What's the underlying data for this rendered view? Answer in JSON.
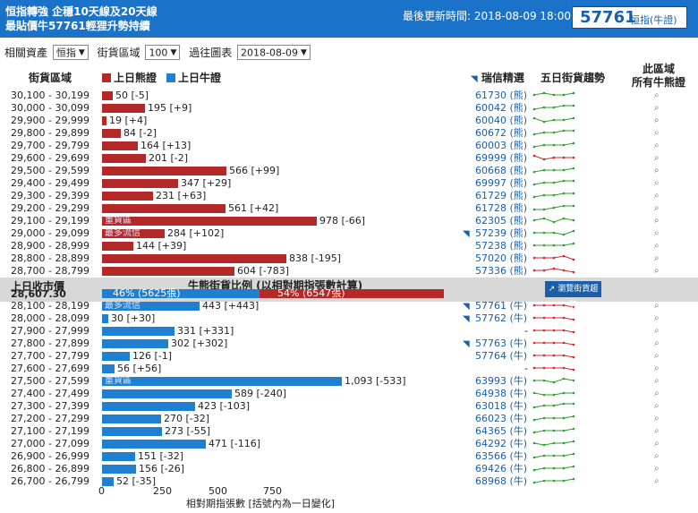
{
  "header": {
    "title_line1": "恒指轉強 企穩10天線及20天線",
    "title_line2": "最貼價牛57761輕狸升勢持續",
    "update": "最後更新時間: 2018-08-09 18:00",
    "code": "57761",
    "code_label": "恒指(牛證)"
  },
  "filters": {
    "asset_label": "相關資產",
    "asset_value": "恒指",
    "zone_label": "街貨區域",
    "zone_value": "100",
    "past_label": "過往圖表",
    "past_value": "2018-08-09"
  },
  "columns": {
    "zone": "街貨區域",
    "bear_legend": "上日熊證",
    "bull_legend": "上日牛證",
    "pick": "瑞信精選",
    "trend": "五日街貨趨勢",
    "all_line1": "此區域",
    "all_line2": "所有牛熊證"
  },
  "colors": {
    "bear": "#b52828",
    "bull": "#1f7fd1",
    "header": "#1a73c9",
    "up": "#2ca02c",
    "down": "#d62728"
  },
  "close": {
    "label": "上日收市價",
    "value": "28,607.30"
  },
  "ratio": {
    "title": "牛熊街貨比例 (以相對期指張數計算)",
    "bull_pct": 46,
    "bull_text": "46% (5625張)",
    "bear_pct": 54,
    "bear_text": "54% (6547張)",
    "button": "瀏覽街貨趨勢"
  },
  "chart_data": {
    "type": "bar",
    "xlabel": "相對期指張數 [括號內為一日變化]",
    "xticks": [
      0,
      250,
      500,
      750
    ],
    "bear": [
      {
        "range": "30,100 - 30,199",
        "value": 50,
        "label": "50 [-5]",
        "code": "61730 (熊)",
        "trend": [
          3,
          4,
          3,
          3,
          4
        ]
      },
      {
        "range": "30,000 - 30,099",
        "value": 195,
        "label": "195 [+9]",
        "code": "60042 (熊)",
        "trend": [
          2,
          3,
          3,
          4,
          4
        ]
      },
      {
        "range": "29,900 - 29,999",
        "value": 19,
        "label": "19 [+4]",
        "code": "60040 (熊)",
        "trend": [
          4,
          2,
          3,
          3,
          4
        ]
      },
      {
        "range": "29,800 - 29,899",
        "value": 84,
        "label": "84 [-2]",
        "code": "60672 (熊)",
        "trend": [
          2,
          3,
          3,
          4,
          4
        ]
      },
      {
        "range": "29,700 - 29,799",
        "value": 164,
        "label": "164 [+13]",
        "code": "60003 (熊)",
        "trend": [
          2,
          3,
          3,
          3,
          4
        ]
      },
      {
        "range": "29,600 - 29,699",
        "value": 201,
        "label": "201 [-2]",
        "code": "69999 (熊)",
        "trend": [
          4,
          2,
          3,
          3,
          3
        ]
      },
      {
        "range": "29,500 - 29,599",
        "value": 566,
        "label": "566 [+99]",
        "code": "60668 (熊)",
        "trend": [
          2,
          3,
          3,
          3,
          4
        ]
      },
      {
        "range": "29,400 - 29,499",
        "value": 347,
        "label": "347 [+29]",
        "code": "69997 (熊)",
        "trend": [
          2,
          3,
          3,
          4,
          4
        ]
      },
      {
        "range": "29,300 - 29,399",
        "value": 231,
        "label": "231 [+63]",
        "code": "61729 (熊)",
        "trend": [
          2,
          3,
          3,
          4,
          4
        ]
      },
      {
        "range": "29,200 - 29,299",
        "value": 561,
        "label": "561 [+42]",
        "code": "61728 (熊)",
        "trend": [
          2,
          2,
          3,
          4,
          4
        ]
      },
      {
        "range": "29,100 - 29,199",
        "value": 978,
        "label": "978 [-66]",
        "code": "62305 (熊)",
        "tag": "重貨區",
        "trend": [
          3,
          4,
          2,
          4,
          3
        ]
      },
      {
        "range": "29,000 - 29,099",
        "value": 284,
        "label": "284 [+102]",
        "code": "57239 (熊)",
        "tag": "最多流信",
        "pick": true,
        "trend": [
          3,
          3,
          3,
          2,
          4
        ]
      },
      {
        "range": "28,900 - 28,999",
        "value": 144,
        "label": "144 [+39]",
        "code": "57238 (熊)",
        "trend": [
          3,
          3,
          3,
          3,
          4
        ]
      },
      {
        "range": "28,800 - 28,899",
        "value": 838,
        "label": "838 [-195]",
        "code": "57020 (熊)",
        "trend": [
          3,
          3,
          3,
          4,
          2
        ]
      },
      {
        "range": "28,700 - 28,799",
        "value": 604,
        "label": "604 [-783]",
        "code": "57336 (熊)",
        "trend": [
          3,
          3,
          4,
          3,
          2
        ]
      }
    ],
    "bull": [
      {
        "range": "28,100 - 28,199",
        "value": 443,
        "label": "443 [+443]",
        "code": "57761 (牛)",
        "tag": "最多流信",
        "pick": true,
        "trend": [
          3,
          3,
          3,
          3,
          2
        ]
      },
      {
        "range": "28,000 - 28,099",
        "value": 30,
        "label": "30 [+30]",
        "code": "57762 (牛)",
        "pick": true,
        "trend": [
          3,
          3,
          3,
          3,
          2
        ]
      },
      {
        "range": "27,900 - 27,999",
        "value": 331,
        "label": "331 [+331]",
        "code": "-",
        "trend": [
          3,
          3,
          3,
          3,
          2
        ]
      },
      {
        "range": "27,800 - 27,899",
        "value": 302,
        "label": "302 [+302]",
        "code": "57763 (牛)",
        "pick": true,
        "trend": [
          3,
          3,
          3,
          3,
          2
        ]
      },
      {
        "range": "27,700 - 27,799",
        "value": 126,
        "label": "126 [-1]",
        "code": "57764 (牛)",
        "trend": [
          3,
          3,
          3,
          3,
          2
        ]
      },
      {
        "range": "27,600 - 27,699",
        "value": 56,
        "label": "56 [+56]",
        "code": "-",
        "trend": [
          3,
          3,
          3,
          3,
          2
        ]
      },
      {
        "range": "27,500 - 27,599",
        "value": 1093,
        "label": "1,093 [-533]",
        "code": "63993 (牛)",
        "tag": "重貨區",
        "trend": [
          3,
          3,
          2,
          4,
          3
        ]
      },
      {
        "range": "27,400 - 27,499",
        "value": 589,
        "label": "589 [-240]",
        "code": "64938 (牛)",
        "trend": [
          3,
          2,
          2,
          3,
          3
        ]
      },
      {
        "range": "27,300 - 27,399",
        "value": 423,
        "label": "423 [-103]",
        "code": "63018 (牛)",
        "trend": [
          2,
          3,
          3,
          4,
          4
        ]
      },
      {
        "range": "27,200 - 27,299",
        "value": 270,
        "label": "270 [-32]",
        "code": "66023 (牛)",
        "trend": [
          2,
          3,
          3,
          3,
          4
        ]
      },
      {
        "range": "27,100 - 27,199",
        "value": 273,
        "label": "273 [-55]",
        "code": "64365 (牛)",
        "trend": [
          2,
          3,
          3,
          3,
          4
        ]
      },
      {
        "range": "27,000 - 27,099",
        "value": 471,
        "label": "471 [-116]",
        "code": "64292 (牛)",
        "trend": [
          3,
          2,
          3,
          3,
          4
        ]
      },
      {
        "range": "26,900 - 26,999",
        "value": 151,
        "label": "151 [-32]",
        "code": "63566 (牛)",
        "trend": [
          2,
          3,
          3,
          3,
          4
        ]
      },
      {
        "range": "26,800 - 26,899",
        "value": 156,
        "label": "156 [-26]",
        "code": "69426 (牛)",
        "trend": [
          2,
          3,
          3,
          3,
          4
        ]
      },
      {
        "range": "26,700 - 26,799",
        "value": 52,
        "label": "52 [-35]",
        "code": "68968 (牛)",
        "trend": [
          2,
          3,
          3,
          3,
          4
        ]
      }
    ]
  }
}
